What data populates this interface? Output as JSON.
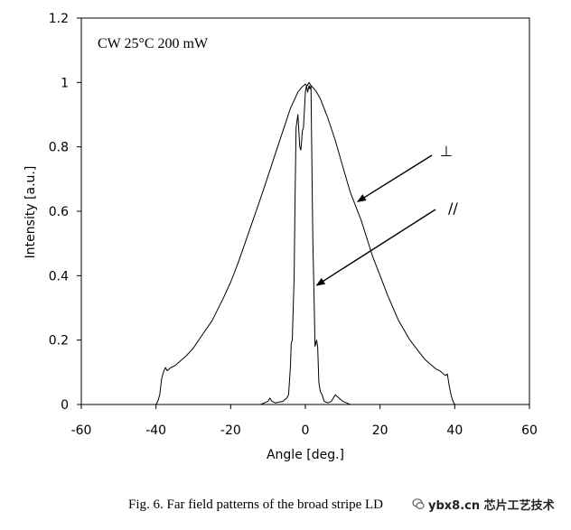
{
  "chart_data": {
    "type": "line",
    "title": "",
    "xlabel": "Angle [deg.]",
    "ylabel": "Intensity [a.u.]",
    "xlim": [
      -60,
      60
    ],
    "ylim": [
      0,
      1.2
    ],
    "xticks": [
      -60,
      -40,
      -20,
      0,
      20,
      40,
      60
    ],
    "yticks": [
      0,
      0.2,
      0.4,
      0.6,
      0.8,
      1,
      1.2
    ],
    "xtick_labels": [
      "-60",
      "-40",
      "-20",
      "0",
      "20",
      "40",
      "60"
    ],
    "ytick_labels": [
      "0",
      "0.2",
      "0.4",
      "0.6",
      "0.8",
      "1",
      "1.2"
    ],
    "grid": false,
    "condition_label": "CW 25°C 200 mW",
    "series": [
      {
        "name": "⊥",
        "label": "⊥",
        "x": [
          -50,
          -40,
          -39.5,
          -39,
          -38.5,
          -38,
          -37.5,
          -37,
          -36,
          -35,
          -32,
          -30,
          -28,
          -25,
          -22,
          -20,
          -18,
          -15,
          -12,
          -10,
          -8,
          -6,
          -4,
          -2,
          -1,
          0,
          0.5,
          1,
          1.5,
          2,
          3,
          4,
          6,
          8,
          10,
          12,
          15,
          18,
          20,
          22,
          25,
          28,
          30,
          32,
          35,
          36,
          37,
          37.5,
          38,
          38.5,
          39,
          39.5,
          40,
          50
        ],
        "y": [
          0,
          0,
          0.01,
          0.03,
          0.08,
          0.1,
          0.115,
          0.105,
          0.115,
          0.12,
          0.15,
          0.175,
          0.21,
          0.26,
          0.33,
          0.38,
          0.44,
          0.54,
          0.64,
          0.71,
          0.78,
          0.85,
          0.92,
          0.97,
          0.985,
          0.995,
          0.99,
          1.0,
          0.99,
          0.985,
          0.97,
          0.95,
          0.89,
          0.82,
          0.74,
          0.66,
          0.57,
          0.46,
          0.4,
          0.34,
          0.26,
          0.2,
          0.17,
          0.14,
          0.11,
          0.105,
          0.095,
          0.09,
          0.095,
          0.06,
          0.03,
          0.01,
          0,
          0
        ]
      },
      {
        "name": "//",
        "label": "//",
        "x": [
          -50,
          -12,
          -10,
          -9.5,
          -9,
          -8,
          -6,
          -5,
          -4.5,
          -4,
          -3.8,
          -3.5,
          -3,
          -2.8,
          -2.5,
          -2,
          -1.5,
          -1.2,
          -1,
          -0.8,
          -0.5,
          0,
          0.3,
          0.6,
          1,
          1.2,
          1.5,
          1.8,
          2,
          2.3,
          2.6,
          3,
          3.3,
          3.6,
          4,
          4.5,
          5,
          6,
          7,
          8,
          9,
          10,
          12,
          50
        ],
        "y": [
          0,
          0,
          0.01,
          0.02,
          0.01,
          0.005,
          0.01,
          0.02,
          0.03,
          0.12,
          0.19,
          0.2,
          0.4,
          0.6,
          0.86,
          0.9,
          0.8,
          0.79,
          0.82,
          0.85,
          0.86,
          0.97,
          0.99,
          0.97,
          0.99,
          0.98,
          0.99,
          0.7,
          0.5,
          0.35,
          0.18,
          0.2,
          0.18,
          0.07,
          0.04,
          0.03,
          0.01,
          0.005,
          0.01,
          0.03,
          0.02,
          0.01,
          0,
          0
        ]
      }
    ],
    "annotations": [
      {
        "text": "⊥",
        "target_series": "⊥",
        "arrow_to": {
          "x": 14,
          "y": 0.63
        }
      },
      {
        "text": "//",
        "target_series": "//",
        "arrow_to": {
          "x": 3,
          "y": 0.37
        }
      }
    ],
    "caption": "Fig. 6. Far field patterns of the broad stripe LD",
    "watermark": "ybx8.cn 芯片工艺技术"
  }
}
